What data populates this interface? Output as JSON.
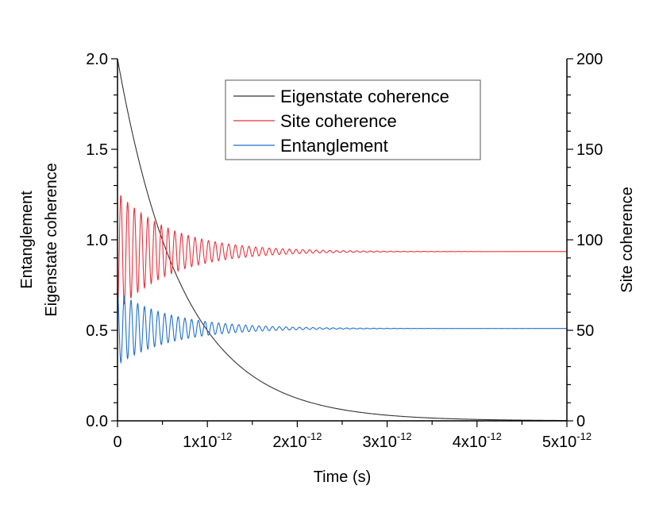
{
  "chart_data": {
    "type": "line",
    "xlabel": "Time (s)",
    "ylabel_left": [
      "Entanglement",
      "Eigenstate coherence"
    ],
    "ylabel_right": "Site coherence",
    "x_ticks": [
      {
        "value": 0,
        "label": "0"
      },
      {
        "value": 1e-12,
        "mantissa": "1x10",
        "exponent": "-12"
      },
      {
        "value": 2e-12,
        "mantissa": "2x10",
        "exponent": "-12"
      },
      {
        "value": 3e-12,
        "mantissa": "3x10",
        "exponent": "-12"
      },
      {
        "value": 4e-12,
        "mantissa": "4x10",
        "exponent": "-12"
      },
      {
        "value": 5e-12,
        "mantissa": "5x10",
        "exponent": "-12"
      }
    ],
    "left_ticks": [
      "0.0",
      "0.5",
      "1.0",
      "1.5",
      "2.0"
    ],
    "right_ticks": [
      "0",
      "50",
      "100",
      "150",
      "200"
    ],
    "xlim": [
      0,
      5e-12
    ],
    "ylim_left": [
      0,
      2
    ],
    "ylim_right": [
      0,
      200
    ],
    "legend_position": "top-center",
    "series": [
      {
        "name": "Eigenstate coherence",
        "axis": "left",
        "color": "#333333",
        "x": [
          0,
          2.5e-13,
          5e-13,
          7.5e-13,
          1e-12,
          1.25e-12,
          1.5e-12,
          1.75e-12,
          2e-12,
          2.5e-12,
          3e-12,
          3.5e-12,
          4e-12,
          4.5e-12,
          5e-12
        ],
        "values": [
          2.0,
          1.4,
          0.98,
          0.7,
          0.48,
          0.36,
          0.27,
          0.2,
          0.145,
          0.08,
          0.045,
          0.025,
          0.014,
          0.008,
          0.004
        ]
      },
      {
        "name": "Site coherence",
        "axis": "right",
        "color": "#e8313b",
        "baseline": 93.5,
        "initial_amplitude": 33,
        "decay_time": 6e-13,
        "oscillation_period": 7.5e-14
      },
      {
        "name": "Entanglement",
        "axis": "left",
        "color": "#1f6fd1",
        "baseline": 0.51,
        "initial_amplitude": 0.2,
        "decay_time": 6e-13,
        "oscillation_period": 7.5e-14
      }
    ]
  }
}
